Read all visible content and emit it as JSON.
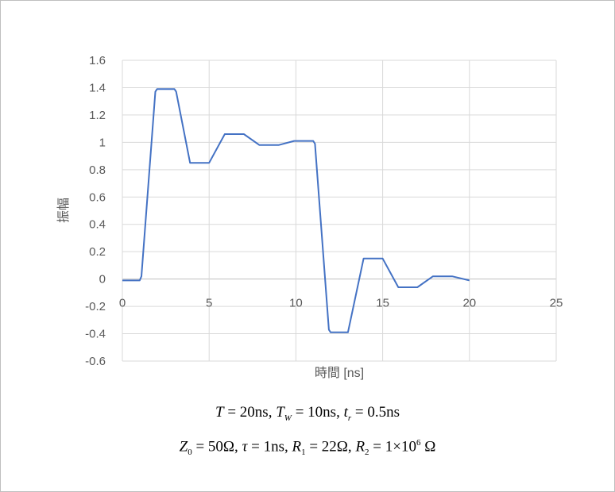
{
  "chart_data": {
    "type": "line",
    "title": "",
    "xlabel": "時間 [ns]",
    "ylabel": "振幅",
    "xlim": [
      0,
      25
    ],
    "ylim": [
      -0.6,
      1.6
    ],
    "xticks": [
      "0",
      "5",
      "10",
      "15",
      "20",
      "25"
    ],
    "yticks": [
      "1.6",
      "1.4",
      "1.2",
      "1",
      "0.8",
      "0.6",
      "0.4",
      "0.2",
      "0",
      "-0.2",
      "-0.4",
      "-0.6"
    ],
    "grid": true,
    "legend": "none",
    "series": [
      {
        "name": "振幅",
        "color": "#4472c4",
        "x": [
          0,
          1,
          1.1,
          1.9,
          2,
          3,
          3.1,
          3.9,
          5,
          5.9,
          7,
          7.9,
          9,
          9.9,
          11,
          11.1,
          11.9,
          12,
          13,
          13.9,
          15,
          15.9,
          17,
          17.9,
          19,
          20
        ],
        "y": [
          -0.01,
          -0.01,
          0.02,
          1.37,
          1.39,
          1.39,
          1.37,
          0.85,
          0.85,
          1.06,
          1.06,
          0.98,
          0.98,
          1.01,
          1.01,
          0.99,
          -0.37,
          -0.39,
          -0.39,
          0.15,
          0.15,
          -0.06,
          -0.06,
          0.02,
          0.02,
          -0.01
        ]
      }
    ]
  },
  "formulas": {
    "line1": [
      {
        "t": "T",
        "s": "i"
      },
      {
        "t": " = 20ns, "
      },
      {
        "t": "T",
        "s": "i"
      },
      {
        "t": "W",
        "s": "sub"
      },
      {
        "t": " = 10ns, "
      },
      {
        "t": "t",
        "s": "i"
      },
      {
        "t": "r",
        "s": "sub"
      },
      {
        "t": " = 0.5ns"
      }
    ],
    "line2": [
      {
        "t": "Z",
        "s": "i"
      },
      {
        "t": "0",
        "s": "subn"
      },
      {
        "t": " = 50Ω, "
      },
      {
        "t": "τ",
        "s": "i"
      },
      {
        "t": " = 1ns, "
      },
      {
        "t": "R",
        "s": "i"
      },
      {
        "t": "1",
        "s": "subn"
      },
      {
        "t": " = 22Ω, "
      },
      {
        "t": "R",
        "s": "i"
      },
      {
        "t": "2",
        "s": "subn"
      },
      {
        "t": " = 1×10"
      },
      {
        "t": "6",
        "s": "sup"
      },
      {
        "t": " Ω"
      }
    ]
  }
}
